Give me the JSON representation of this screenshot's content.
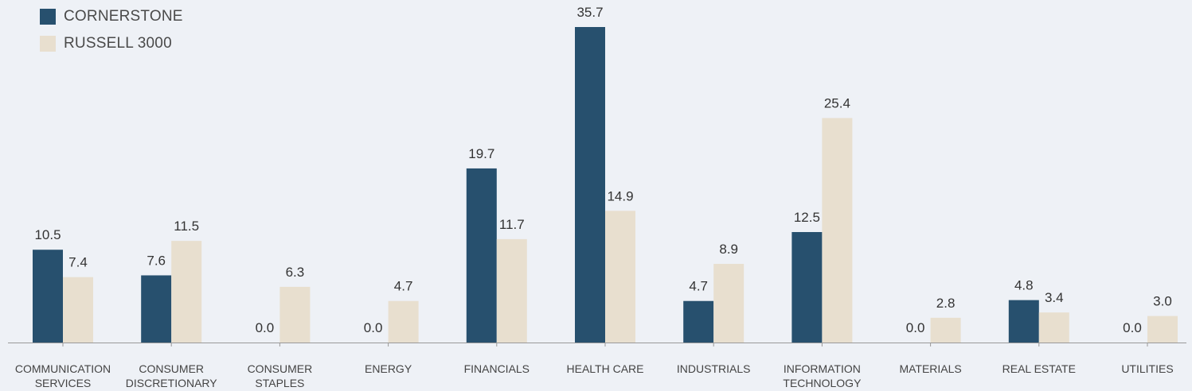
{
  "chart_data": {
    "type": "bar",
    "categories": [
      [
        "COMMUNICATION",
        "SERVICES"
      ],
      [
        "CONSUMER",
        "DISCRETIONARY"
      ],
      [
        "CONSUMER",
        "STAPLES"
      ],
      [
        "ENERGY"
      ],
      [
        "FINANCIALS"
      ],
      [
        "HEALTH CARE"
      ],
      [
        "INDUSTRIALS"
      ],
      [
        "INFORMATION",
        "TECHNOLOGY"
      ],
      [
        "MATERIALS"
      ],
      [
        "REAL ESTATE"
      ],
      [
        "UTILITIES"
      ]
    ],
    "series": [
      {
        "name": "CORNERSTONE",
        "color": "#27506e",
        "values": [
          10.5,
          7.6,
          0.0,
          0.0,
          19.7,
          35.7,
          4.7,
          12.5,
          0.0,
          4.8,
          0.0
        ],
        "labels": [
          "10.5",
          "7.6",
          "0.0",
          "0.0",
          "19.7",
          "35.7",
          "4.7",
          "12.5",
          "0.0",
          "4.8",
          "0.0"
        ]
      },
      {
        "name": "RUSSELL 3000",
        "color": "#e8dfcf",
        "values": [
          7.4,
          11.5,
          6.3,
          4.7,
          11.7,
          14.9,
          8.9,
          25.4,
          2.8,
          3.4,
          3.0
        ],
        "labels": [
          "7.4",
          "11.5",
          "6.3",
          "4.7",
          "11.7",
          "14.9",
          "8.9",
          "25.4",
          "2.8",
          "3.4",
          "3.0"
        ]
      }
    ],
    "ylim": [
      0,
      35.7
    ],
    "legend_position": "top-left",
    "grid": false,
    "axis_color": "#999999"
  }
}
